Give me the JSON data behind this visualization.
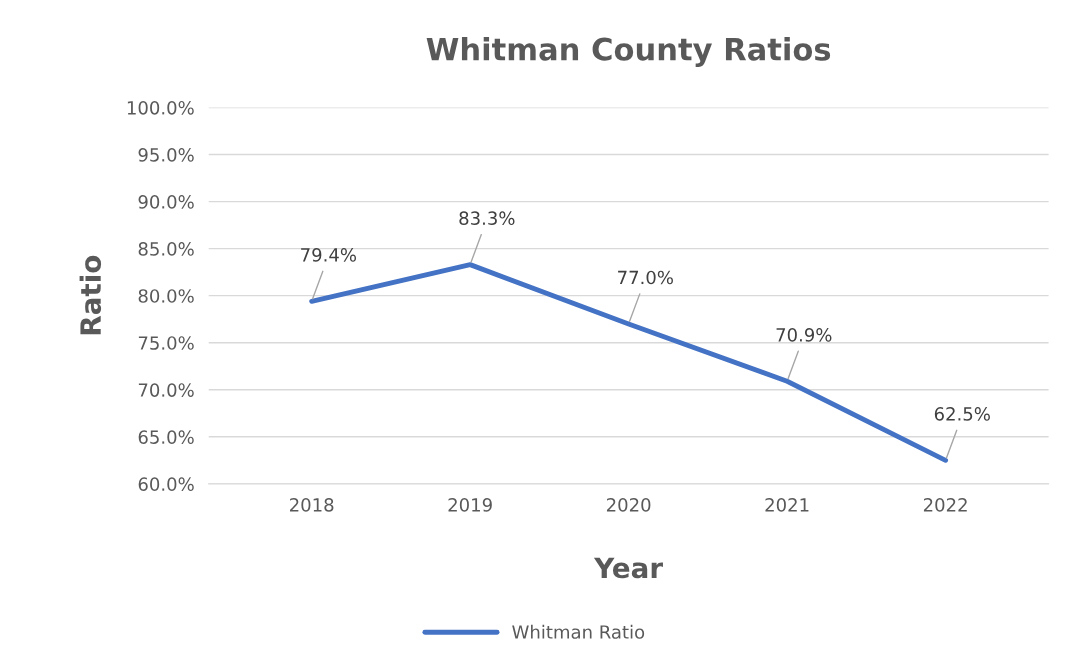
{
  "chart_data": {
    "type": "line",
    "title": "Whitman County Ratios",
    "xlabel": "Year",
    "ylabel": "Ratio",
    "categories": [
      "2018",
      "2019",
      "2020",
      "2021",
      "2022"
    ],
    "series": [
      {
        "name": "Whitman Ratio",
        "color": "#4472c4",
        "values": [
          79.4,
          83.3,
          77.0,
          70.9,
          62.5
        ],
        "value_labels": [
          "79.4%",
          "83.3%",
          "77.0%",
          "70.9%",
          "62.5%"
        ]
      }
    ],
    "ylim": [
      60,
      100
    ],
    "yticks": [
      {
        "value": 60,
        "label": "60.0%"
      },
      {
        "value": 65,
        "label": "65.0%"
      },
      {
        "value": 70,
        "label": "70.0%"
      },
      {
        "value": 75,
        "label": "75.0%"
      },
      {
        "value": 80,
        "label": "80.0%"
      },
      {
        "value": 85,
        "label": "85.0%"
      },
      {
        "value": 90,
        "label": "90.0%"
      },
      {
        "value": 95,
        "label": "95.0%"
      },
      {
        "value": 100,
        "label": "100.0%"
      }
    ],
    "grid": "y",
    "legend": "bottom",
    "marker": "none",
    "line_style": "solid"
  }
}
